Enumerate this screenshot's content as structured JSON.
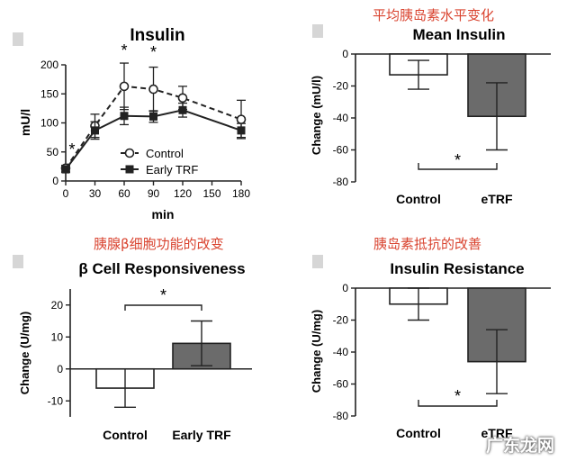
{
  "chart_data": [
    {
      "type": "line",
      "title": "Insulin",
      "xlabel": "min",
      "ylabel": "mU/l",
      "x": [
        0,
        30,
        60,
        90,
        120,
        180
      ],
      "xticks": [
        "0",
        "30",
        "60",
        "90",
        "120",
        "150",
        "180"
      ],
      "yticks": [
        "0",
        "50",
        "100",
        "150",
        "200"
      ],
      "xlim": [
        0,
        180
      ],
      "ylim": [
        0,
        200
      ],
      "series": [
        {
          "name": "Control",
          "values": [
            22,
            95,
            163,
            158,
            143,
            106
          ],
          "err": [
            5,
            20,
            40,
            38,
            20,
            33
          ],
          "style": "dashed-open-circle"
        },
        {
          "name": "Early TRF",
          "values": [
            20,
            87,
            112,
            111,
            122,
            87
          ],
          "err": [
            5,
            15,
            15,
            10,
            12,
            12
          ],
          "style": "solid-square"
        }
      ],
      "annotations": [
        {
          "text": "*",
          "x": 5
        },
        {
          "text": "*",
          "x": 60
        },
        {
          "text": "*",
          "x": 90
        }
      ]
    },
    {
      "type": "bar",
      "caption": "平均胰岛素水平变化",
      "title": "Mean Insulin",
      "ylabel": "Change (mU/l)",
      "categories": [
        "Control",
        "eTRF"
      ],
      "values": [
        -13,
        -39
      ],
      "err": [
        9,
        21
      ],
      "yticks": [
        "0",
        "-20",
        "-40",
        "-60",
        "-80"
      ],
      "ylim": [
        -80,
        0
      ],
      "colors": [
        "#ffffff",
        "#6b6b6b"
      ],
      "annotation": "*"
    },
    {
      "type": "bar",
      "caption": "胰腺β细胞功能的改变",
      "title": "β Cell Responsiveness",
      "ylabel": "Change (U/mg)",
      "categories": [
        "Control",
        "Early TRF"
      ],
      "values": [
        -6,
        8
      ],
      "err": [
        6,
        7
      ],
      "yticks": [
        "20",
        "10",
        "0",
        "-10"
      ],
      "ylim": [
        -15,
        25
      ],
      "colors": [
        "#ffffff",
        "#6b6b6b"
      ],
      "annotation": "*"
    },
    {
      "type": "bar",
      "caption": "胰岛素抵抗的改善",
      "title": "Insulin Resistance",
      "ylabel": "Change (U/mg)",
      "categories": [
        "Control",
        "eTRF"
      ],
      "values": [
        -10,
        -46
      ],
      "err": [
        10,
        20
      ],
      "yticks": [
        "0",
        "-20",
        "-40",
        "-60",
        "-80"
      ],
      "ylim": [
        -80,
        0
      ],
      "colors": [
        "#ffffff",
        "#6b6b6b"
      ],
      "annotation": "*"
    }
  ],
  "watermark": "广东龙网"
}
